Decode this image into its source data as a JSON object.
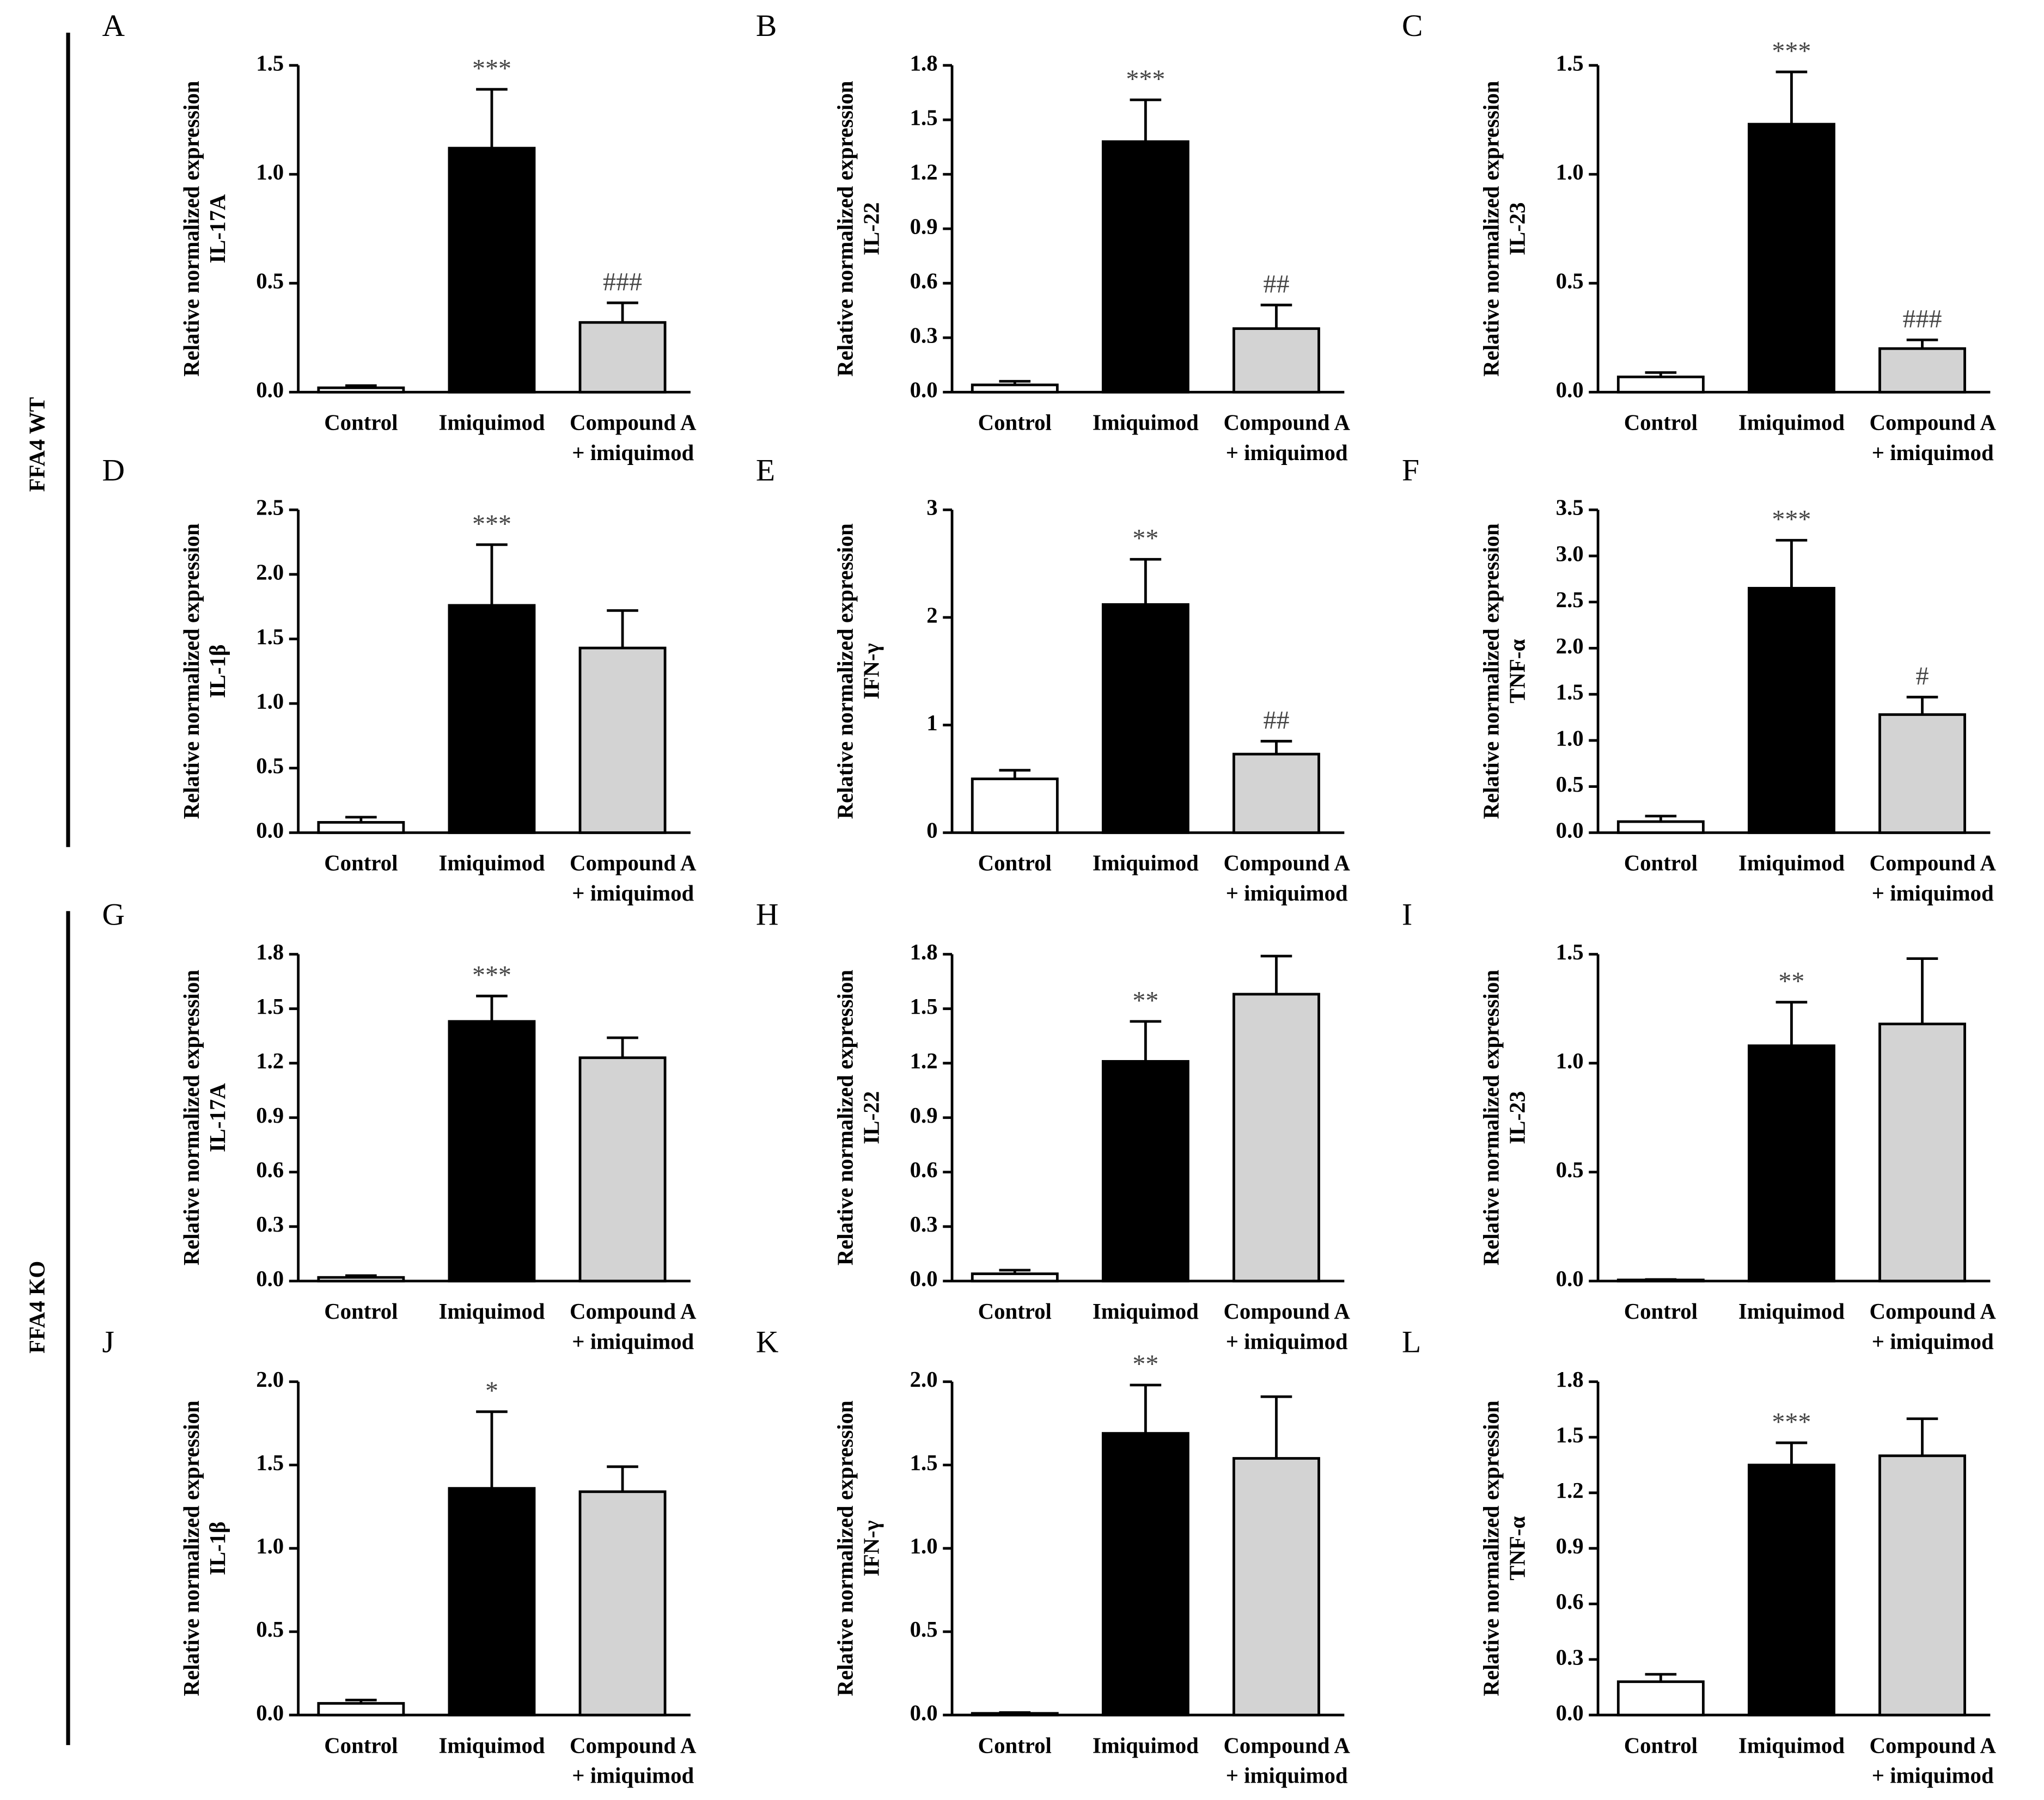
{
  "groups": [
    {
      "label": "FFA4 WT"
    },
    {
      "label": "FFA4 KO"
    }
  ],
  "chart_data": [
    {
      "type": "bar",
      "panel": "A",
      "ylabel": [
        "Relative normalized expression",
        "IL-17A"
      ],
      "categories": [
        "Control",
        "Imiquimod",
        [
          "Compound A",
          "+ imiquimod"
        ]
      ],
      "values": [
        0.02,
        1.12,
        0.32
      ],
      "errors": [
        0.01,
        0.27,
        0.09
      ],
      "annotations": [
        null,
        "***",
        "###"
      ],
      "colors": [
        "#ffffff",
        "#000000",
        "#d3d3d3"
      ],
      "ylim": [
        0,
        1.5
      ],
      "yticks": [
        {
          "value": 0,
          "label": "0.0"
        },
        0.5,
        {
          "value": 1,
          "label": "1.0"
        },
        1.5
      ]
    },
    {
      "type": "bar",
      "panel": "B",
      "ylabel": [
        "Relative normalized expression",
        "IL-22"
      ],
      "categories": [
        "Control",
        "Imiquimod",
        [
          "Compound A",
          "+ imiquimod"
        ]
      ],
      "values": [
        0.04,
        1.38,
        0.35
      ],
      "errors": [
        0.02,
        0.23,
        0.13
      ],
      "annotations": [
        null,
        "***",
        "##"
      ],
      "colors": [
        "#ffffff",
        "#000000",
        "#d3d3d3"
      ],
      "ylim": [
        0,
        1.8
      ],
      "yticks": [
        {
          "value": 0,
          "label": "0.0"
        },
        0.3,
        0.6,
        0.9,
        1.2,
        1.5,
        1.8
      ]
    },
    {
      "type": "bar",
      "panel": "C",
      "ylabel": [
        "Relative normalized expression",
        "IL-23"
      ],
      "categories": [
        "Control",
        "Imiquimod",
        [
          "Compound A",
          "+ imiquimod"
        ]
      ],
      "values": [
        0.07,
        1.23,
        0.2
      ],
      "errors": [
        0.02,
        0.24,
        0.04
      ],
      "annotations": [
        null,
        "***",
        "###"
      ],
      "colors": [
        "#ffffff",
        "#000000",
        "#d3d3d3"
      ],
      "ylim": [
        0,
        1.5
      ],
      "yticks": [
        {
          "value": 0,
          "label": "0.0"
        },
        0.5,
        {
          "value": 1,
          "label": "1.0"
        },
        1.5
      ]
    },
    {
      "type": "bar",
      "panel": "D",
      "ylabel": [
        "Relative normalized expression",
        "IL-1β"
      ],
      "categories": [
        "Control",
        "Imiquimod",
        [
          "Compound A",
          "+ imiquimod"
        ]
      ],
      "values": [
        0.08,
        1.76,
        1.43
      ],
      "errors": [
        0.04,
        0.47,
        0.29
      ],
      "annotations": [
        null,
        "***",
        null
      ],
      "colors": [
        "#ffffff",
        "#000000",
        "#d3d3d3"
      ],
      "ylim": [
        0,
        2.5
      ],
      "yticks": [
        {
          "value": 0,
          "label": "0.0"
        },
        0.5,
        {
          "value": 1,
          "label": "1.0"
        },
        1.5,
        {
          "value": 2,
          "label": "2.0"
        },
        2.5
      ]
    },
    {
      "type": "bar",
      "panel": "E",
      "ylabel": [
        "Relative normalized expression",
        "IFN-γ"
      ],
      "categories": [
        "Control",
        "Imiquimod",
        [
          "Compound A",
          "+ imiquimod"
        ]
      ],
      "values": [
        0.5,
        2.12,
        0.73
      ],
      "errors": [
        0.08,
        0.42,
        0.12
      ],
      "annotations": [
        null,
        "**",
        "##"
      ],
      "colors": [
        "#ffffff",
        "#000000",
        "#d3d3d3"
      ],
      "ylim": [
        0,
        3
      ],
      "yticks": [
        0,
        1,
        2,
        3
      ]
    },
    {
      "type": "bar",
      "panel": "F",
      "ylabel": [
        "Relative normalized expression",
        "TNF-α"
      ],
      "categories": [
        "Control",
        "Imiquimod",
        [
          "Compound A",
          "+ imiquimod"
        ]
      ],
      "values": [
        0.12,
        2.65,
        1.28
      ],
      "errors": [
        0.06,
        0.52,
        0.19
      ],
      "annotations": [
        null,
        "***",
        "#"
      ],
      "colors": [
        "#ffffff",
        "#000000",
        "#d3d3d3"
      ],
      "ylim": [
        0,
        3.5
      ],
      "yticks": [
        {
          "value": 0,
          "label": "0.0"
        },
        0.5,
        {
          "value": 1,
          "label": "1.0"
        },
        1.5,
        {
          "value": 2,
          "label": "2.0"
        },
        2.5,
        {
          "value": 3,
          "label": "3.0"
        },
        3.5
      ]
    },
    {
      "type": "bar",
      "panel": "G",
      "ylabel": [
        "Relative normalized expression",
        "IL-17A"
      ],
      "categories": [
        "Control",
        "Imiquimod",
        [
          "Compound A",
          "+ imiquimod"
        ]
      ],
      "values": [
        0.02,
        1.43,
        1.23
      ],
      "errors": [
        0.01,
        0.14,
        0.11
      ],
      "annotations": [
        null,
        "***",
        null
      ],
      "colors": [
        "#ffffff",
        "#000000",
        "#d3d3d3"
      ],
      "ylim": [
        0,
        1.8
      ],
      "yticks": [
        {
          "value": 0,
          "label": "0.0"
        },
        0.3,
        0.6,
        0.9,
        1.2,
        1.5,
        1.8
      ]
    },
    {
      "type": "bar",
      "panel": "H",
      "ylabel": [
        "Relative normalized expression",
        "IL-22"
      ],
      "categories": [
        "Control",
        "Imiquimod",
        [
          "Compound A",
          "+ imiquimod"
        ]
      ],
      "values": [
        0.04,
        1.21,
        1.58
      ],
      "errors": [
        0.02,
        0.22,
        0.21
      ],
      "annotations": [
        null,
        "**",
        null
      ],
      "colors": [
        "#ffffff",
        "#000000",
        "#d3d3d3"
      ],
      "ylim": [
        0,
        1.8
      ],
      "yticks": [
        {
          "value": 0,
          "label": "0.0"
        },
        0.3,
        0.6,
        0.9,
        1.2,
        1.5,
        1.8
      ]
    },
    {
      "type": "bar",
      "panel": "I",
      "ylabel": [
        "Relative normalized expression",
        "IL-23"
      ],
      "categories": [
        "Control",
        "Imiquimod",
        [
          "Compound A",
          "+ imiquimod"
        ]
      ],
      "values": [
        0.005,
        1.08,
        1.18
      ],
      "errors": [
        0.002,
        0.2,
        0.3
      ],
      "annotations": [
        null,
        "**",
        null
      ],
      "colors": [
        "#ffffff",
        "#000000",
        "#d3d3d3"
      ],
      "ylim": [
        0,
        1.5
      ],
      "yticks": [
        {
          "value": 0,
          "label": "0.0"
        },
        0.5,
        {
          "value": 1,
          "label": "1.0"
        },
        1.5
      ]
    },
    {
      "type": "bar",
      "panel": "J",
      "ylabel": [
        "Relative normalized expression",
        "IL-1β"
      ],
      "categories": [
        "Control",
        "Imiquimod",
        [
          "Compound A",
          "+ imiquimod"
        ]
      ],
      "values": [
        0.07,
        1.36,
        1.34
      ],
      "errors": [
        0.02,
        0.46,
        0.15
      ],
      "annotations": [
        null,
        "*",
        null
      ],
      "colors": [
        "#ffffff",
        "#000000",
        "#d3d3d3"
      ],
      "ylim": [
        0,
        2
      ],
      "yticks": [
        {
          "value": 0,
          "label": "0.0"
        },
        0.5,
        {
          "value": 1,
          "label": "1.0"
        },
        1.5,
        {
          "value": 2,
          "label": "2.0"
        }
      ]
    },
    {
      "type": "bar",
      "panel": "K",
      "ylabel": [
        "Relative normalized expression",
        "IFN-γ"
      ],
      "categories": [
        "Control",
        "Imiquimod",
        [
          "Compound A",
          "+ imiquimod"
        ]
      ],
      "values": [
        0.01,
        1.69,
        1.54
      ],
      "errors": [
        0.005,
        0.29,
        0.37
      ],
      "annotations": [
        null,
        "**",
        null
      ],
      "colors": [
        "#ffffff",
        "#000000",
        "#d3d3d3"
      ],
      "ylim": [
        0,
        2
      ],
      "yticks": [
        {
          "value": 0,
          "label": "0.0"
        },
        0.5,
        {
          "value": 1,
          "label": "1.0"
        },
        1.5,
        {
          "value": 2,
          "label": "2.0"
        }
      ]
    },
    {
      "type": "bar",
      "panel": "L",
      "ylabel": [
        "Relative normalized expression",
        "TNF-α"
      ],
      "categories": [
        "Control",
        "Imiquimod",
        [
          "Compound A",
          "+ imiquimod"
        ]
      ],
      "values": [
        0.18,
        1.35,
        1.4
      ],
      "errors": [
        0.04,
        0.12,
        0.2
      ],
      "annotations": [
        null,
        "***",
        null
      ],
      "colors": [
        "#ffffff",
        "#000000",
        "#d3d3d3"
      ],
      "ylim": [
        0,
        1.8
      ],
      "yticks": [
        {
          "value": 0,
          "label": "0.0"
        },
        0.3,
        0.6,
        0.9,
        1.2,
        1.5,
        1.8
      ]
    }
  ]
}
